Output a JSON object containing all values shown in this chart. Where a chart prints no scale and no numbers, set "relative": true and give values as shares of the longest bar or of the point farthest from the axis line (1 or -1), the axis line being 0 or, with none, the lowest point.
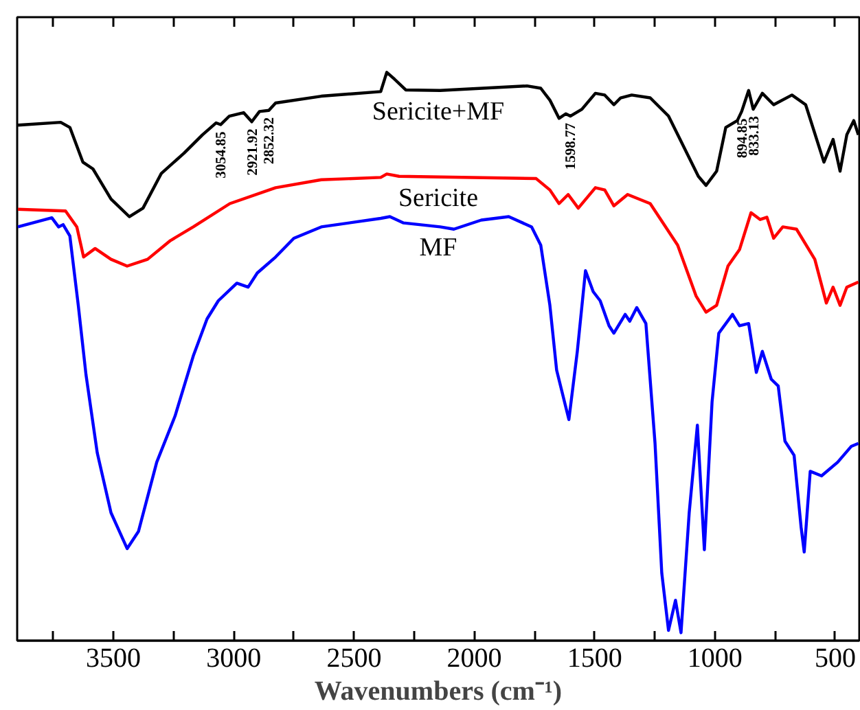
{
  "chart_data": {
    "type": "line",
    "relative": true,
    "xlabel": "Wavenumbers (cm⁻¹)",
    "xlim": [
      3900,
      400
    ],
    "xticks": [
      {
        "value": 3750,
        "label": null
      },
      3500,
      {
        "value": 3250,
        "label": null
      },
      3000,
      {
        "value": 2750,
        "label": null
      },
      2500,
      {
        "value": 2250,
        "label": null
      },
      2000,
      {
        "value": 1750,
        "label": null
      },
      1500,
      {
        "value": 1250,
        "label": null
      },
      1000,
      {
        "value": 750,
        "label": null
      },
      500
    ],
    "grid": false,
    "marker": "none",
    "line_style": "solid",
    "tick_labels": "x",
    "series": [
      {
        "name": "Sericite+MF",
        "color": "#000000",
        "x": [
          3897,
          3719,
          3681,
          3627,
          3585,
          3510,
          3434,
          3377,
          3301,
          3206,
          3130,
          3073,
          3054,
          3018,
          2959,
          2925,
          2893,
          2854,
          2826,
          2636,
          2389,
          2364,
          2332,
          2285,
          2142,
          1781,
          1724,
          1686,
          1648,
          1620,
          1601,
          1553,
          1497,
          1458,
          1420,
          1392,
          1346,
          1269,
          1193,
          1117,
          1069,
          1037,
          993,
          955,
          907,
          889,
          860,
          841,
          803,
          756,
          680,
          623,
          547,
          509,
          480,
          452,
          423,
          404
        ],
        "values": [
          0.907,
          0.912,
          0.903,
          0.842,
          0.83,
          0.777,
          0.746,
          0.761,
          0.822,
          0.858,
          0.89,
          0.911,
          0.908,
          0.923,
          0.929,
          0.913,
          0.931,
          0.933,
          0.946,
          0.958,
          0.966,
          1.0,
          0.988,
          0.969,
          0.968,
          0.976,
          0.972,
          0.951,
          0.919,
          0.927,
          0.923,
          0.935,
          0.963,
          0.96,
          0.943,
          0.955,
          0.96,
          0.955,
          0.923,
          0.858,
          0.817,
          0.801,
          0.826,
          0.903,
          0.915,
          0.931,
          0.968,
          0.935,
          0.963,
          0.943,
          0.96,
          0.943,
          0.842,
          0.882,
          0.826,
          0.89,
          0.915,
          0.89
        ]
      },
      {
        "name": "Sericite",
        "color": "#ff0000",
        "x": [
          3897,
          3699,
          3652,
          3624,
          3576,
          3510,
          3443,
          3358,
          3263,
          3168,
          3016,
          2826,
          2636,
          2389,
          2364,
          2313,
          1743,
          1686,
          1648,
          1610,
          1568,
          1497,
          1458,
          1420,
          1363,
          1269,
          1155,
          1078,
          1037,
          993,
          946,
          898,
          850,
          812,
          784,
          756,
          718,
          661,
          585,
          537,
          509,
          480,
          452,
          404
        ],
        "values": [
          0.759,
          0.756,
          0.728,
          0.675,
          0.69,
          0.671,
          0.659,
          0.671,
          0.704,
          0.728,
          0.769,
          0.797,
          0.811,
          0.815,
          0.821,
          0.817,
          0.813,
          0.793,
          0.769,
          0.785,
          0.761,
          0.797,
          0.793,
          0.765,
          0.785,
          0.769,
          0.696,
          0.606,
          0.578,
          0.59,
          0.659,
          0.688,
          0.753,
          0.741,
          0.745,
          0.708,
          0.728,
          0.724,
          0.671,
          0.594,
          0.622,
          0.59,
          0.622,
          0.631
        ]
      },
      {
        "name": "MF",
        "color": "#0000ff",
        "x": [
          3897,
          3756,
          3728,
          3709,
          3681,
          3646,
          3614,
          3567,
          3510,
          3443,
          3396,
          3320,
          3244,
          3168,
          3111,
          3064,
          2987,
          2940,
          2902,
          2826,
          2750,
          2636,
          2389,
          2351,
          2294,
          2142,
          2085,
          1971,
          1857,
          1762,
          1724,
          1686,
          1658,
          1607,
          1572,
          1538,
          1506,
          1477,
          1440,
          1420,
          1373,
          1354,
          1325,
          1287,
          1249,
          1221,
          1193,
          1164,
          1141,
          1107,
          1073,
          1044,
          1012,
          984,
          927,
          898,
          860,
          828,
          803,
          766,
          737,
          709,
          671,
          642,
          629,
          604,
          557,
          490,
          433,
          404
        ],
        "values": [
          0.728,
          0.744,
          0.728,
          0.732,
          0.712,
          0.59,
          0.468,
          0.33,
          0.225,
          0.162,
          0.192,
          0.314,
          0.395,
          0.501,
          0.566,
          0.598,
          0.629,
          0.622,
          0.647,
          0.675,
          0.708,
          0.728,
          0.743,
          0.746,
          0.735,
          0.728,
          0.724,
          0.74,
          0.746,
          0.728,
          0.696,
          0.59,
          0.476,
          0.389,
          0.509,
          0.651,
          0.614,
          0.598,
          0.554,
          0.541,
          0.574,
          0.562,
          0.586,
          0.558,
          0.347,
          0.119,
          0.018,
          0.071,
          0.014,
          0.225,
          0.379,
          0.16,
          0.42,
          0.541,
          0.574,
          0.554,
          0.558,
          0.472,
          0.509,
          0.46,
          0.448,
          0.351,
          0.326,
          0.2,
          0.156,
          0.298,
          0.29,
          0.314,
          0.342,
          0.347
        ]
      }
    ],
    "annotations": [
      {
        "text": "3054.85",
        "x": 3054,
        "y": 0.908
      },
      {
        "text": "2921.92",
        "x": 2925,
        "y": 0.913
      },
      {
        "text": "2852.32",
        "x": 2854,
        "y": 0.933
      },
      {
        "text": "1598.77",
        "x": 1601,
        "y": 0.923
      },
      {
        "text": "894.85",
        "x": 889,
        "y": 0.931
      },
      {
        "text": "833.13",
        "x": 841,
        "y": 0.935
      }
    ]
  }
}
